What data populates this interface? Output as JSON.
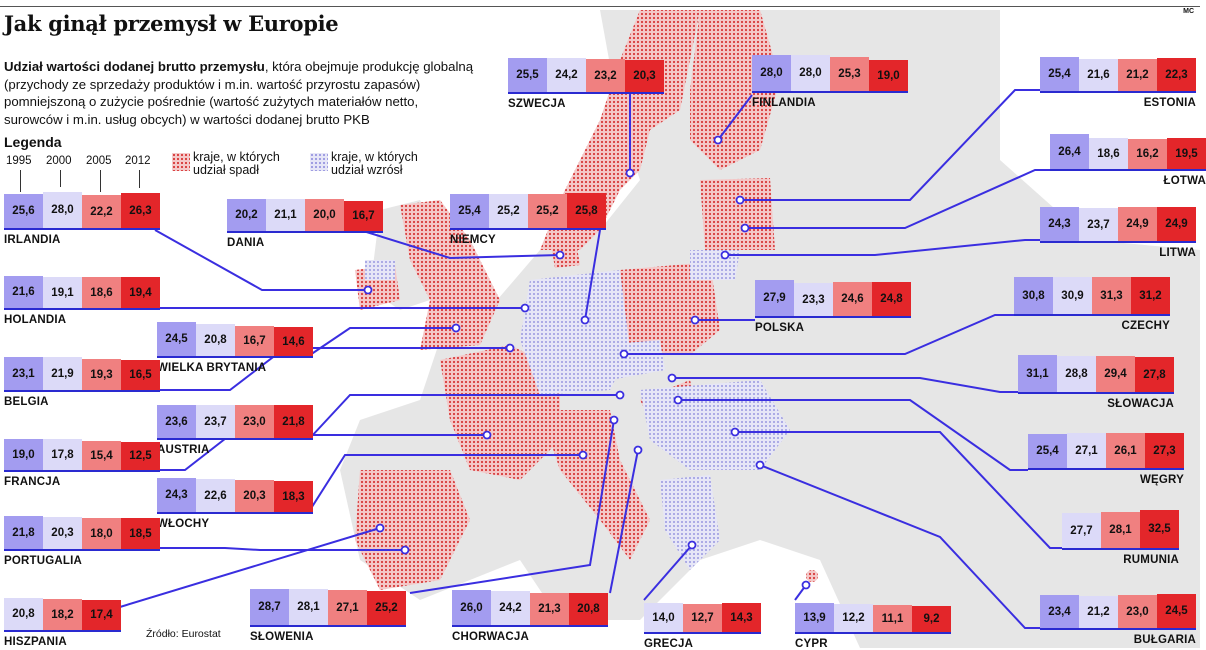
{
  "header": {
    "title": "Jak ginął przemysł w Europie",
    "mc": "MC",
    "description_bold": "Udział wartości dodanej brutto przemysłu",
    "description_rest": ", która obejmuje produkcję globalną (przychody ze sprzedaży produktów i m.in. wartość przyrostu zapasów) pomniejszoną o zużycie pośrednie (wartość zużytych materiałów netto, surowców i m.in. usług obcych) w wartości dodanej brutto PKB"
  },
  "legend": {
    "title": "Legenda",
    "years": [
      "1995",
      "2000",
      "2005",
      "2012"
    ],
    "fell_label_1": "kraje, w których",
    "fell_label_2": "udział spadł",
    "rose_label_1": "kraje, w których",
    "rose_label_2": "udział wzrósł",
    "example": {
      "name": "IRLANDIA",
      "values": [
        "25,6",
        "28,0",
        "22,2",
        "26,3"
      ]
    }
  },
  "source": "Źródło: Eurostat",
  "colors": {
    "c1995": "#a39cf0",
    "c2000": "#dcdaf8",
    "c2005": "#f08080",
    "c2012": "#e3262a",
    "line": "#3a2ee0",
    "fell": "#e86a6a",
    "rose": "#b0aeea"
  },
  "chart_data": {
    "type": "bar",
    "title": "Jak ginął przemysł w Europie",
    "categories": [
      "1995",
      "2000",
      "2005",
      "2012"
    ],
    "countries": [
      {
        "name": "IRLANDIA",
        "values": [
          25.6,
          28.0,
          22.2,
          26.3
        ],
        "labels": [
          "25,6",
          "28,0",
          "22,2",
          "26,3"
        ]
      },
      {
        "name": "DANIA",
        "values": [
          20.2,
          21.1,
          20.0,
          16.7
        ],
        "labels": [
          "20,2",
          "21,1",
          "20,0",
          "16,7"
        ]
      },
      {
        "name": "NIEMCY",
        "values": [
          25.4,
          25.2,
          25.2,
          25.8
        ],
        "labels": [
          "25,4",
          "25,2",
          "25,2",
          "25,8"
        ]
      },
      {
        "name": "SZWECJA",
        "values": [
          25.5,
          24.2,
          23.2,
          20.3
        ],
        "labels": [
          "25,5",
          "24,2",
          "23,2",
          "20,3"
        ]
      },
      {
        "name": "FINLANDIA",
        "values": [
          28.0,
          28.0,
          25.3,
          19.0
        ],
        "labels": [
          "28,0",
          "28,0",
          "25,3",
          "19,0"
        ]
      },
      {
        "name": "ESTONIA",
        "values": [
          25.4,
          21.6,
          21.2,
          22.3
        ],
        "labels": [
          "25,4",
          "21,6",
          "21,2",
          "22,3"
        ]
      },
      {
        "name": "ŁOTWA",
        "values": [
          26.4,
          18.6,
          16.2,
          19.5
        ],
        "labels": [
          "26,4",
          "18,6",
          "16,2",
          "19,5"
        ]
      },
      {
        "name": "LITWA",
        "values": [
          24.3,
          23.7,
          24.9,
          24.9
        ],
        "labels": [
          "24,3",
          "23,7",
          "24,9",
          "24,9"
        ]
      },
      {
        "name": "HOLANDIA",
        "values": [
          21.6,
          19.1,
          18.6,
          19.4
        ],
        "labels": [
          "21,6",
          "19,1",
          "18,6",
          "19,4"
        ]
      },
      {
        "name": "WIELKA BRYTANIA",
        "values": [
          24.5,
          20.8,
          16.7,
          14.6
        ],
        "labels": [
          "24,5",
          "20,8",
          "16,7",
          "14,6"
        ]
      },
      {
        "name": "BELGIA",
        "values": [
          23.1,
          21.9,
          19.3,
          16.5
        ],
        "labels": [
          "23,1",
          "21,9",
          "19,3",
          "16,5"
        ]
      },
      {
        "name": "POLSKA",
        "values": [
          27.9,
          23.3,
          24.6,
          24.8
        ],
        "labels": [
          "27,9",
          "23,3",
          "24,6",
          "24,8"
        ]
      },
      {
        "name": "CZECHY",
        "values": [
          30.8,
          30.9,
          31.3,
          31.2
        ],
        "labels": [
          "30,8",
          "30,9",
          "31,3",
          "31,2"
        ]
      },
      {
        "name": "AUSTRIA",
        "values": [
          23.6,
          23.7,
          23.0,
          21.8
        ],
        "labels": [
          "23,6",
          "23,7",
          "23,0",
          "21,8"
        ]
      },
      {
        "name": "SŁOWACJA",
        "values": [
          31.1,
          28.8,
          29.4,
          27.8
        ],
        "labels": [
          "31,1",
          "28,8",
          "29,4",
          "27,8"
        ]
      },
      {
        "name": "FRANCJA",
        "values": [
          19.0,
          17.8,
          15.4,
          12.5
        ],
        "labels": [
          "19,0",
          "17,8",
          "15,4",
          "12,5"
        ]
      },
      {
        "name": "WŁOCHY",
        "values": [
          24.3,
          22.6,
          20.3,
          18.3
        ],
        "labels": [
          "24,3",
          "22,6",
          "20,3",
          "18,3"
        ]
      },
      {
        "name": "WĘGRY",
        "values": [
          25.4,
          27.1,
          26.1,
          27.3
        ],
        "labels": [
          "25,4",
          "27,1",
          "26,1",
          "27,3"
        ]
      },
      {
        "name": "PORTUGALIA",
        "values": [
          21.8,
          20.3,
          18.0,
          18.5
        ],
        "labels": [
          "21,8",
          "20,3",
          "18,0",
          "18,5"
        ]
      },
      {
        "name": "RUMUNIA",
        "values": [
          null,
          27.7,
          28.1,
          32.5
        ],
        "labels": [
          "",
          "27,7",
          "28,1",
          "32,5"
        ]
      },
      {
        "name": "HISZPANIA",
        "values": [
          null,
          20.8,
          18.2,
          17.4
        ],
        "labels": [
          "",
          "20,8",
          "18,2",
          "17,4"
        ]
      },
      {
        "name": "SŁOWENIA",
        "values": [
          28.7,
          28.1,
          27.1,
          25.2
        ],
        "labels": [
          "28,7",
          "28,1",
          "27,1",
          "25,2"
        ]
      },
      {
        "name": "CHORWACJA",
        "values": [
          26.0,
          24.2,
          21.3,
          20.8
        ],
        "labels": [
          "26,0",
          "24,2",
          "21,3",
          "20,8"
        ]
      },
      {
        "name": "GRECJA",
        "values": [
          null,
          14.0,
          12.7,
          14.3
        ],
        "labels": [
          "",
          "14,0",
          "12,7",
          "14,3"
        ]
      },
      {
        "name": "CYPR",
        "values": [
          13.9,
          12.2,
          11.1,
          9.2
        ],
        "labels": [
          "13,9",
          "12,2",
          "11,1",
          "9,2"
        ]
      },
      {
        "name": "BUŁGARIA",
        "values": [
          23.4,
          21.2,
          23.0,
          24.5
        ],
        "labels": [
          "23,4",
          "21,2",
          "23,0",
          "24,5"
        ]
      }
    ]
  }
}
